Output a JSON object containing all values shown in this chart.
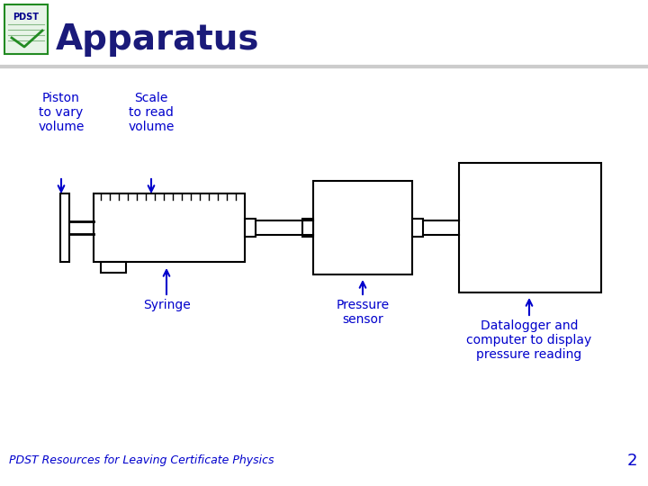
{
  "title": "Apparatus",
  "title_color": "#1a1a7a",
  "title_fontsize": 28,
  "bg_color": "#ffffff",
  "arrow_color": "#0000cc",
  "line_color": "#000000",
  "label_color": "#0000cc",
  "footer_text": "PDST Resources for Leaving Certificate Physics",
  "footer_fontsize": 9,
  "page_number": "2",
  "separator_color": "#cccccc",
  "labels": {
    "piston": "Piston\nto vary\nvolume",
    "scale": "Scale\nto read\nvolume",
    "syringe": "Syringe",
    "pressure": "Pressure\nsensor",
    "datalogger": "Datalogger and\ncomputer to display\npressure reading"
  }
}
